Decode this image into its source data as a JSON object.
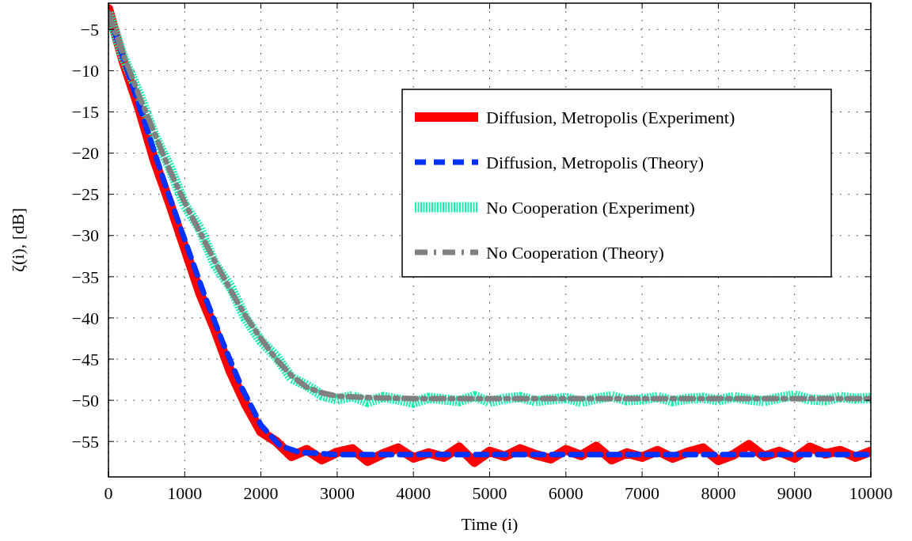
{
  "chart_data": {
    "type": "line",
    "xlabel": "Time (i)",
    "ylabel": "ζ(i), [dB]",
    "xlim": [
      0,
      10000
    ],
    "xticks": [
      0,
      1000,
      2000,
      3000,
      4000,
      5000,
      6000,
      7000,
      8000,
      9000,
      10000
    ],
    "ylim": [
      -59.3,
      -1.8
    ],
    "yticks": [
      -55,
      -50,
      -45,
      -40,
      -35,
      -30,
      -25,
      -20,
      -15,
      -10,
      -5
    ],
    "grid": true,
    "legend": "right",
    "x": [
      0,
      200,
      400,
      600,
      800,
      1000,
      1200,
      1400,
      1600,
      1800,
      2000,
      2200,
      2400,
      2600,
      2800,
      3000,
      3200,
      3400,
      3600,
      3800,
      4000,
      4200,
      4400,
      4600,
      4800,
      5000,
      5200,
      5400,
      5600,
      5800,
      6000,
      6200,
      6400,
      6600,
      6800,
      7000,
      7200,
      7400,
      7600,
      7800,
      8000,
      8200,
      8400,
      8600,
      8800,
      9000,
      9200,
      9400,
      9600,
      9800,
      10000
    ],
    "series": [
      {
        "name": "Diffusion, Metropolis (Experiment)",
        "color": "#ff0000",
        "line_style": "solid",
        "values": [
          -2.5,
          -9,
          -14.5,
          -20.8,
          -26,
          -31.5,
          -37,
          -41.5,
          -46.5,
          -50.5,
          -53.8,
          -55,
          -56.8,
          -56,
          -57.2,
          -56.3,
          -55.9,
          -57.4,
          -56.5,
          -55.8,
          -57,
          -56.4,
          -56.9,
          -55.7,
          -57.5,
          -56.2,
          -56.8,
          -55.9,
          -56.6,
          -57.1,
          -56,
          -56.7,
          -55.6,
          -57.2,
          -56.4,
          -56.9,
          -56.1,
          -57,
          -56.3,
          -55.8,
          -57.3,
          -56.6,
          -55.4,
          -56.8,
          -56.2,
          -57,
          -55.7,
          -56.5,
          -56.1,
          -56.9,
          -56.2
        ]
      },
      {
        "name": "Diffusion, Metropolis (Theory)",
        "color": "#0033ff",
        "line_style": "dashed",
        "x": [
          0,
          250,
          500,
          750,
          1000,
          1250,
          1500,
          1750,
          2000,
          2250,
          2500,
          3000,
          10000
        ],
        "values": [
          -3,
          -10,
          -17,
          -24,
          -30.5,
          -37,
          -43,
          -48.5,
          -53,
          -55.5,
          -56.3,
          -56.6,
          -56.6
        ]
      },
      {
        "name": "No Cooperation (Experiment)",
        "color": "#19f0b0",
        "line_style": "dotted",
        "values": [
          -3,
          -8.5,
          -12.8,
          -17.8,
          -21.6,
          -26.3,
          -29.2,
          -33.6,
          -36.2,
          -40.1,
          -42.8,
          -44.7,
          -47.3,
          -48.2,
          -49.4,
          -49.9,
          -49.5,
          -50.2,
          -49.6,
          -49.9,
          -50.3,
          -49.7,
          -49.9,
          -50.1,
          -49.5,
          -50.2,
          -49.8,
          -49.6,
          -50.1,
          -49.9,
          -49.7,
          -50.2,
          -49.8,
          -49.5,
          -50,
          -49.9,
          -49.6,
          -50.1,
          -49.8,
          -49.7,
          -50,
          -49.6,
          -49.9,
          -50.1,
          -49.7,
          -49.4,
          -49.9,
          -50,
          -49.6,
          -49.8,
          -49.7
        ]
      },
      {
        "name": "No Cooperation (Theory)",
        "color": "#808080",
        "line_style": "dashed",
        "x": [
          0,
          200,
          400,
          600,
          800,
          1000,
          1200,
          1400,
          1600,
          1800,
          2000,
          2200,
          2400,
          2600,
          2800,
          3000,
          3500,
          4000,
          10000
        ],
        "values": [
          -3,
          -8.2,
          -13,
          -17.5,
          -22,
          -26,
          -29.6,
          -33.2,
          -36.6,
          -39.8,
          -42.5,
          -45,
          -47,
          -48.4,
          -49.1,
          -49.5,
          -49.7,
          -49.8,
          -49.8
        ]
      }
    ]
  }
}
